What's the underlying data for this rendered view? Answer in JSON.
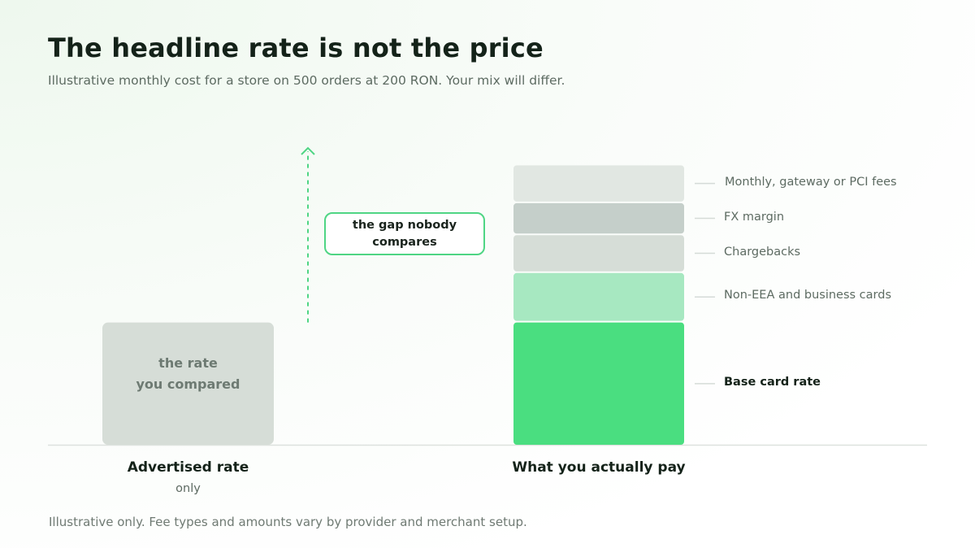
{
  "title": "The headline rate is not the price",
  "subtitle": "Illustrative monthly cost for a store on 500 orders at 200 RON. Your mix will differ.",
  "footnote": "Illustrative only. Fee types and amounts vary by provider and merchant setup.",
  "colors": {
    "advertised": "#d6ddd7",
    "base": "#4ade80",
    "non_eea": "#a7e8c1",
    "chargebacks": "#d6ddd7",
    "fx": "#c5cfca",
    "monthly": "#e1e7e2",
    "accent": "#4fd584",
    "axis": "#dde2de"
  },
  "chart_data": {
    "type": "bar",
    "categories": [
      "Advertised rate",
      "What you actually pay"
    ],
    "category_sublabels": [
      "only",
      ""
    ],
    "advertised_label": "the rate\nyou compared",
    "gap_annotation": "the gap nobody\ncompares",
    "ylim": [
      0,
      100
    ],
    "advertised_value": 42,
    "stack": [
      {
        "name": "Base card rate",
        "value": 42,
        "color_key": "base",
        "emphasis": true
      },
      {
        "name": "Non-EEA and business cards",
        "value": 17,
        "color_key": "non_eea",
        "emphasis": false
      },
      {
        "name": "Chargebacks",
        "value": 13,
        "color_key": "chargebacks",
        "emphasis": false
      },
      {
        "name": "FX margin",
        "value": 11,
        "color_key": "fx",
        "emphasis": false
      },
      {
        "name": "Monthly, gateway or PCI fees",
        "value": 13,
        "color_key": "monthly",
        "emphasis": false
      }
    ]
  }
}
